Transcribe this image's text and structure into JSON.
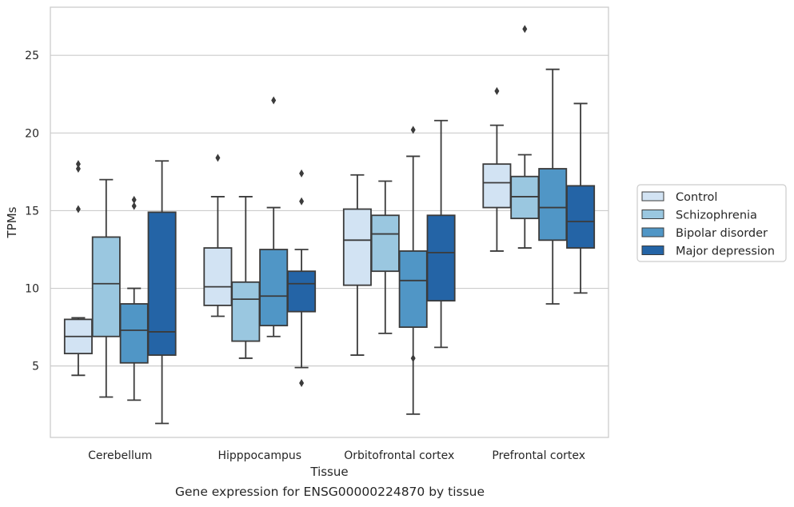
{
  "caption": "Gene expression for ENSG00000224870 by tissue",
  "chart_data": {
    "type": "box",
    "title": "",
    "xlabel": "Tissue",
    "ylabel": "TPMs",
    "ylim": [
      0.4,
      28.1
    ],
    "yticks": [
      5,
      10,
      15,
      20,
      25
    ],
    "grid": "horizontal",
    "legend_position": "right",
    "categories": [
      "Cerebellum",
      "Hipppocampus",
      "Orbitofrontal cortex",
      "Prefrontal cortex"
    ],
    "series": [
      {
        "name": "Control",
        "color": "#d2e3f3",
        "boxes": [
          {
            "whislo": 4.4,
            "q1": 5.8,
            "med": 6.9,
            "q3": 8.0,
            "whishi": 8.1,
            "fliers": [
              15.1,
              17.7,
              18.0
            ]
          },
          {
            "whislo": 8.2,
            "q1": 8.9,
            "med": 10.1,
            "q3": 12.6,
            "whishi": 15.9,
            "fliers": [
              18.4
            ]
          },
          {
            "whislo": 5.7,
            "q1": 10.2,
            "med": 13.1,
            "q3": 15.1,
            "whishi": 17.3,
            "fliers": []
          },
          {
            "whislo": 12.4,
            "q1": 15.2,
            "med": 16.8,
            "q3": 18.0,
            "whishi": 20.5,
            "fliers": [
              22.7
            ]
          }
        ]
      },
      {
        "name": "Schizophrenia",
        "color": "#9ac7e0",
        "boxes": [
          {
            "whislo": 3.0,
            "q1": 6.9,
            "med": 10.3,
            "q3": 13.3,
            "whishi": 17.0,
            "fliers": []
          },
          {
            "whislo": 5.5,
            "q1": 6.6,
            "med": 9.3,
            "q3": 10.4,
            "whishi": 15.9,
            "fliers": []
          },
          {
            "whislo": 7.1,
            "q1": 11.1,
            "med": 13.5,
            "q3": 14.7,
            "whishi": 16.9,
            "fliers": []
          },
          {
            "whislo": 12.6,
            "q1": 14.5,
            "med": 15.9,
            "q3": 17.2,
            "whishi": 18.6,
            "fliers": [
              26.7
            ]
          }
        ]
      },
      {
        "name": "Bipolar disorder",
        "color": "#5096c6",
        "boxes": [
          {
            "whislo": 2.8,
            "q1": 5.2,
            "med": 7.3,
            "q3": 9.0,
            "whishi": 10.0,
            "fliers": [
              15.3,
              15.7
            ]
          },
          {
            "whislo": 6.9,
            "q1": 7.6,
            "med": 9.5,
            "q3": 12.5,
            "whishi": 15.2,
            "fliers": [
              22.1
            ]
          },
          {
            "whislo": 1.9,
            "q1": 7.5,
            "med": 10.5,
            "q3": 12.4,
            "whishi": 18.5,
            "fliers": [
              5.5,
              20.2
            ]
          },
          {
            "whislo": 9.0,
            "q1": 13.1,
            "med": 15.2,
            "q3": 17.7,
            "whishi": 24.1,
            "fliers": []
          }
        ]
      },
      {
        "name": "Major depression",
        "color": "#2464a6",
        "boxes": [
          {
            "whislo": 1.3,
            "q1": 5.7,
            "med": 7.2,
            "q3": 14.9,
            "whishi": 18.2,
            "fliers": []
          },
          {
            "whislo": 4.9,
            "q1": 8.5,
            "med": 10.3,
            "q3": 11.1,
            "whishi": 12.5,
            "fliers": [
              3.9,
              15.6,
              17.4
            ]
          },
          {
            "whislo": 6.2,
            "q1": 9.2,
            "med": 12.3,
            "q3": 14.7,
            "whishi": 20.8,
            "fliers": []
          },
          {
            "whislo": 9.7,
            "q1": 12.6,
            "med": 14.3,
            "q3": 16.6,
            "whishi": 21.9,
            "fliers": []
          }
        ]
      }
    ]
  }
}
